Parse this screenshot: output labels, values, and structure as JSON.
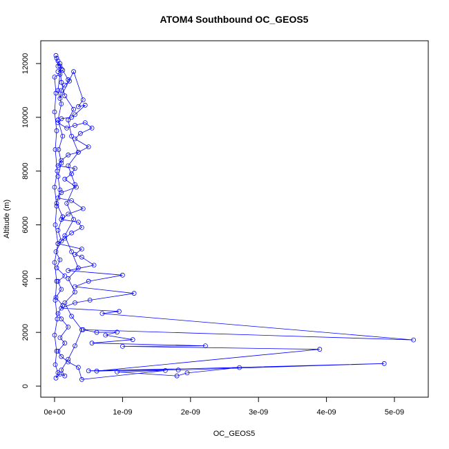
{
  "chart_data": {
    "type": "line",
    "title": "ATOM4 Southbound OC_GEOS5",
    "xlabel": "OC_GEOS5",
    "ylabel": "Altitude (m)",
    "xlim": [
      0,
      5.3e-09
    ],
    "ylim": [
      0,
      12300
    ],
    "x_ticks": [
      0,
      1e-09,
      2e-09,
      3e-09,
      4e-09,
      5e-09
    ],
    "x_tick_labels": [
      "0e+00",
      "1e-09",
      "2e-09",
      "3e-09",
      "4e-09",
      "5e-09"
    ],
    "y_ticks": [
      0,
      2000,
      4000,
      6000,
      8000,
      10000,
      12000
    ],
    "y_tick_labels": [
      "0",
      "2000",
      "4000",
      "6000",
      "8000",
      "10000",
      "12000"
    ],
    "grid": false,
    "marker": "open-circle",
    "series_color": "#0000ff",
    "series": [
      {
        "points": [
          [
            2e-11,
            12300
          ],
          [
            3e-11,
            12200
          ],
          [
            5e-11,
            11900
          ],
          [
            8e-11,
            12000
          ],
          [
            1e-10,
            11800
          ],
          [
            5e-11,
            11700
          ],
          [
            1.2e-10,
            11750
          ],
          [
            2e-10,
            11400
          ],
          [
            2.2e-10,
            11350
          ],
          [
            1.5e-10,
            11200
          ],
          [
            1e-10,
            11000
          ],
          [
            8e-11,
            10700
          ],
          [
            2.8e-10,
            11700
          ],
          [
            4.2e-10,
            10650
          ],
          [
            3.5e-10,
            10400
          ],
          [
            4.5e-10,
            10450
          ],
          [
            3e-10,
            10100
          ],
          [
            2.5e-10,
            10000
          ],
          [
            1e-10,
            9950
          ],
          [
            5e-11,
            9800
          ],
          [
            1.8e-10,
            9600
          ],
          [
            3e-10,
            9700
          ],
          [
            4.5e-10,
            9800
          ],
          [
            5.5e-10,
            9600
          ],
          [
            3.8e-10,
            9400
          ],
          [
            3e-10,
            9200
          ],
          [
            5e-10,
            8900
          ],
          [
            3.5e-10,
            8700
          ],
          [
            2e-10,
            8600
          ],
          [
            1e-10,
            8400
          ],
          [
            5e-11,
            8200
          ],
          [
            3e-10,
            8100
          ],
          [
            2.5e-10,
            7900
          ],
          [
            1.5e-10,
            7700
          ],
          [
            3.2e-10,
            7400
          ],
          [
            1e-10,
            7200
          ],
          [
            5e-11,
            7000
          ],
          [
            2.5e-10,
            6900
          ],
          [
            4.2e-10,
            6600
          ],
          [
            2e-10,
            6400
          ],
          [
            1e-10,
            6200
          ],
          [
            3.5e-10,
            6100
          ],
          [
            4e-10,
            5900
          ],
          [
            2.5e-10,
            5700
          ],
          [
            1.5e-10,
            5500
          ],
          [
            5e-11,
            5300
          ],
          [
            4e-10,
            5100
          ],
          [
            3e-10,
            4900
          ],
          [
            4e-10,
            4800
          ],
          [
            5.8e-10,
            4500
          ],
          [
            2e-10,
            4300
          ],
          [
            1e-09,
            4130
          ],
          [
            5e-10,
            3900
          ],
          [
            3e-10,
            3700
          ],
          [
            1.17e-09,
            3450
          ],
          [
            5.2e-10,
            3200
          ],
          [
            3e-10,
            3100
          ],
          [
            1e-10,
            2900
          ],
          [
            9.5e-10,
            2780
          ],
          [
            7e-10,
            2700
          ],
          [
            5.28e-09,
            1720
          ],
          [
            4.2e-10,
            2100
          ],
          [
            6.2e-10,
            2000
          ],
          [
            9.2e-10,
            2010
          ],
          [
            7.5e-10,
            1900
          ],
          [
            1.15e-09,
            1730
          ],
          [
            5.5e-10,
            1600
          ],
          [
            2.22e-09,
            1500
          ],
          [
            1e-09,
            1480
          ],
          [
            3.9e-09,
            1370
          ],
          [
            6.2e-10,
            560
          ],
          [
            4.85e-09,
            840
          ],
          [
            1.82e-09,
            600
          ],
          [
            5e-10,
            570
          ],
          [
            2.72e-09,
            690
          ],
          [
            1.95e-09,
            490
          ],
          [
            1.8e-09,
            380
          ],
          [
            9.2e-10,
            530
          ],
          [
            1.63e-09,
            580
          ],
          [
            4e-10,
            250
          ],
          [
            3.5e-10,
            700
          ],
          [
            2e-10,
            900
          ],
          [
            1e-10,
            1100
          ],
          [
            5e-11,
            1300
          ],
          [
            1.5e-10,
            1600
          ],
          [
            8e-11,
            1800
          ],
          [
            2e-10,
            2200
          ],
          [
            1e-10,
            2500
          ],
          [
            5e-11,
            2700
          ],
          [
            1.2e-10,
            3000
          ],
          [
            2e-11,
            3300
          ],
          [
            1e-10,
            3600
          ],
          [
            5e-11,
            3900
          ],
          [
            1.5e-10,
            4100
          ],
          [
            3e-11,
            4400
          ],
          [
            8e-11,
            4700
          ],
          [
            2e-11,
            5000
          ],
          [
            1e-10,
            5400
          ],
          [
            5e-11,
            5800
          ],
          [
            1.2e-10,
            6300
          ],
          [
            3e-11,
            6800
          ],
          [
            8e-11,
            7300
          ],
          [
            5e-11,
            7800
          ],
          [
            1e-10,
            8300
          ],
          [
            6e-11,
            8800
          ],
          [
            1.2e-10,
            9300
          ],
          [
            5e-11,
            9900
          ],
          [
            1e-10,
            10500
          ],
          [
            5e-11,
            11000
          ],
          [
            8e-11,
            11600
          ],
          [
            0.0,
            11500
          ],
          [
            2e-11,
            10900
          ],
          [
            0.0,
            10200
          ],
          [
            3e-11,
            9500
          ],
          [
            1e-11,
            8800
          ],
          [
            4e-11,
            8000
          ],
          [
            0.0,
            7400
          ],
          [
            3e-11,
            6700
          ],
          [
            1e-11,
            6000
          ],
          [
            5e-11,
            5300
          ],
          [
            0.0,
            4600
          ],
          [
            3e-11,
            3900
          ],
          [
            1e-11,
            3200
          ],
          [
            4e-11,
            2500
          ],
          [
            0.0,
            1900
          ],
          [
            3e-11,
            1300
          ],
          [
            1e-11,
            800
          ],
          [
            5e-11,
            500
          ],
          [
            2e-11,
            300
          ],
          [
            8e-11,
            450
          ],
          [
            1.5e-10,
            380
          ],
          [
            1e-10,
            600
          ],
          [
            2e-10,
            1000
          ],
          [
            3e-10,
            1500
          ],
          [
            4e-10,
            2100
          ],
          [
            2.5e-10,
            2600
          ],
          [
            1.5e-10,
            3100
          ],
          [
            3e-10,
            3500
          ],
          [
            2e-10,
            4000
          ],
          [
            3.5e-10,
            4400
          ],
          [
            2.5e-10,
            5000
          ],
          [
            1.5e-10,
            5600
          ],
          [
            2.8e-10,
            6200
          ],
          [
            1.8e-10,
            6800
          ],
          [
            3e-10,
            7500
          ],
          [
            2e-10,
            8200
          ],
          [
            3.5e-10,
            8700
          ],
          [
            2.5e-10,
            9300
          ],
          [
            2e-10,
            9900
          ],
          [
            2.8e-10,
            10300
          ],
          [
            1.5e-10,
            10800
          ],
          [
            1e-10,
            11300
          ],
          [
            8e-11,
            11900
          ],
          [
            5e-11,
            12100
          ]
        ]
      }
    ]
  }
}
